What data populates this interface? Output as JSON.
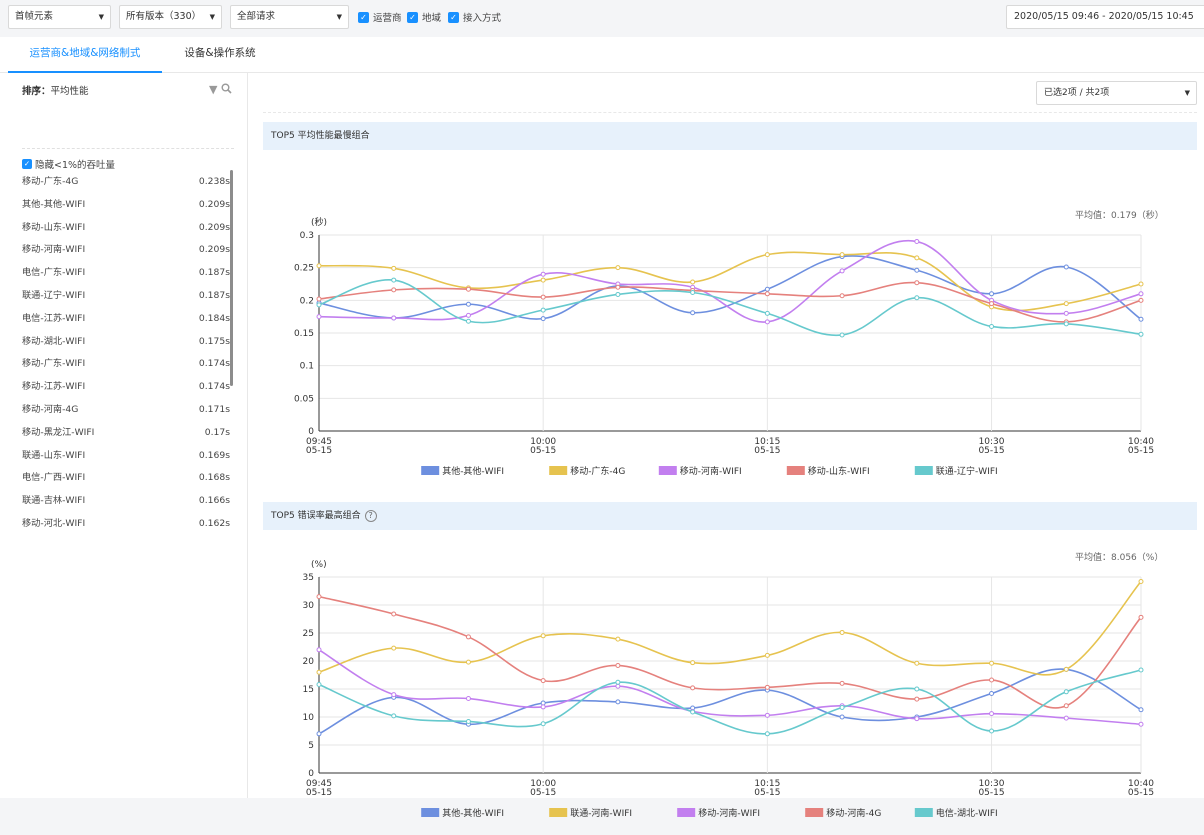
{
  "filters": {
    "element": "首帧元素",
    "version": "所有版本（330）",
    "request": "全部请求",
    "checks": [
      "运营商",
      "地域",
      "接入方式"
    ],
    "date_range": "2020/05/15 09:46 - 2020/05/15 10:45"
  },
  "tabs": [
    "运营商&地域&网络制式",
    "设备&操作系统"
  ],
  "left": {
    "sort_label": "排序：",
    "sort_value": "平均性能",
    "hide_label": "隐藏<1%的吞吐量",
    "items": [
      {
        "name": "移动-广东-4G",
        "value": "0.238s"
      },
      {
        "name": "其他-其他-WIFI",
        "value": "0.209s"
      },
      {
        "name": "移动-山东-WIFI",
        "value": "0.209s"
      },
      {
        "name": "移动-河南-WIFI",
        "value": "0.209s"
      },
      {
        "name": "电信-广东-WIFI",
        "value": "0.187s"
      },
      {
        "name": "联通-辽宁-WIFI",
        "value": "0.187s"
      },
      {
        "name": "电信-江苏-WIFI",
        "value": "0.184s"
      },
      {
        "name": "移动-湖北-WIFI",
        "value": "0.175s"
      },
      {
        "name": "移动-广东-WIFI",
        "value": "0.174s"
      },
      {
        "name": "移动-江苏-WIFI",
        "value": "0.174s"
      },
      {
        "name": "移动-河南-4G",
        "value": "0.171s"
      },
      {
        "name": "移动-黑龙江-WIFI",
        "value": "0.17s"
      },
      {
        "name": "联通-山东-WIFI",
        "value": "0.169s"
      },
      {
        "name": "电信-广西-WIFI",
        "value": "0.168s"
      },
      {
        "name": "联通-吉林-WIFI",
        "value": "0.166s"
      },
      {
        "name": "移动-河北-WIFI",
        "value": "0.162s"
      }
    ]
  },
  "right": {
    "selector": "已选2项 / 共2项"
  },
  "chart_data": [
    {
      "type": "line",
      "title": "TOP5 平均性能最慢组合",
      "average_text": "平均值：0.179（秒）",
      "ylabel": "(秒)",
      "ylim": [
        0,
        0.3
      ],
      "yticks": [
        0,
        0.05,
        0.1,
        0.15,
        0.2,
        0.25,
        0.3
      ],
      "ytick_labels": [
        "0",
        "0.05",
        "0.1",
        "0.15",
        "0.2",
        "0.25",
        "0.3"
      ],
      "x": [
        "09:45",
        "09:50",
        "09:55",
        "10:00",
        "10:05",
        "10:10",
        "10:15",
        "10:20",
        "10:25",
        "10:30",
        "10:35",
        "10:40"
      ],
      "xtick_labels": [
        [
          "09:45",
          "05-15"
        ],
        [
          "10:00",
          "05-15"
        ],
        [
          "10:15",
          "05-15"
        ],
        [
          "10:30",
          "05-15"
        ],
        [
          "10:40",
          "05-15"
        ]
      ],
      "xtick_index": [
        0,
        3,
        6,
        9,
        11
      ],
      "series": [
        {
          "name": "其他-其他-WIFI",
          "color": "#6d8fdf",
          "values": [
            0.196,
            0.173,
            0.194,
            0.172,
            0.222,
            0.181,
            0.217,
            0.267,
            0.246,
            0.21,
            0.251,
            0.171
          ]
        },
        {
          "name": "移动-广东-4G",
          "color": "#e6c34f",
          "values": [
            0.253,
            0.249,
            0.219,
            0.231,
            0.25,
            0.228,
            0.27,
            0.27,
            0.265,
            0.19,
            0.195,
            0.225
          ]
        },
        {
          "name": "移动-河南-WIFI",
          "color": "#c27fef",
          "values": [
            0.175,
            0.173,
            0.177,
            0.24,
            0.225,
            0.22,
            0.167,
            0.245,
            0.29,
            0.2,
            0.18,
            0.21
          ]
        },
        {
          "name": "移动-山东-WIFI",
          "color": "#e5817d",
          "values": [
            0.202,
            0.216,
            0.217,
            0.205,
            0.22,
            0.215,
            0.21,
            0.207,
            0.227,
            0.195,
            0.167,
            0.2
          ]
        },
        {
          "name": "联通-辽宁-WIFI",
          "color": "#66c9cd",
          "values": [
            0.193,
            0.231,
            0.168,
            0.185,
            0.209,
            0.212,
            0.18,
            0.147,
            0.204,
            0.16,
            0.164,
            0.148
          ]
        }
      ]
    },
    {
      "type": "line",
      "title": "TOP5 错误率最高组合",
      "average_text": "平均值：8.056（%）",
      "ylabel": "(%)",
      "ylim": [
        0,
        35
      ],
      "yticks": [
        0,
        5,
        10,
        15,
        20,
        25,
        30,
        35
      ],
      "ytick_labels": [
        "0",
        "5",
        "10",
        "15",
        "20",
        "25",
        "30",
        "35"
      ],
      "x": [
        "09:45",
        "09:50",
        "09:55",
        "10:00",
        "10:05",
        "10:10",
        "10:15",
        "10:20",
        "10:25",
        "10:30",
        "10:35",
        "10:40"
      ],
      "xtick_labels": [
        [
          "09:45",
          "05-15"
        ],
        [
          "10:00",
          "05-15"
        ],
        [
          "10:15",
          "05-15"
        ],
        [
          "10:30",
          "05-15"
        ],
        [
          "10:40",
          "05-15"
        ]
      ],
      "xtick_index": [
        0,
        3,
        6,
        9,
        11
      ],
      "series": [
        {
          "name": "其他-其他-WIFI",
          "color": "#6d8fdf",
          "values": [
            7.0,
            13.5,
            8.7,
            12.5,
            12.7,
            11.6,
            14.8,
            10.0,
            10.0,
            14.2,
            18.5,
            11.3
          ]
        },
        {
          "name": "联通-河南-WIFI",
          "color": "#e6c34f",
          "values": [
            18.0,
            22.3,
            19.8,
            24.5,
            23.9,
            19.7,
            21.0,
            25.1,
            19.6,
            19.6,
            18.5,
            34.2
          ]
        },
        {
          "name": "移动-河南-WIFI",
          "color": "#c27fef",
          "values": [
            22.0,
            14.0,
            13.3,
            11.8,
            15.5,
            11.0,
            10.3,
            12.0,
            9.7,
            10.6,
            9.8,
            8.7
          ]
        },
        {
          "name": "移动-河南-4G",
          "color": "#e5817d",
          "values": [
            31.5,
            28.4,
            24.3,
            16.5,
            19.2,
            15.2,
            15.3,
            16.0,
            13.2,
            16.6,
            12.0,
            27.8
          ]
        },
        {
          "name": "电信-湖北-WIFI",
          "color": "#66c9cd",
          "values": [
            15.8,
            10.2,
            9.2,
            8.8,
            16.2,
            10.9,
            7.0,
            11.7,
            15.0,
            7.5,
            14.5,
            18.4
          ]
        }
      ]
    }
  ]
}
